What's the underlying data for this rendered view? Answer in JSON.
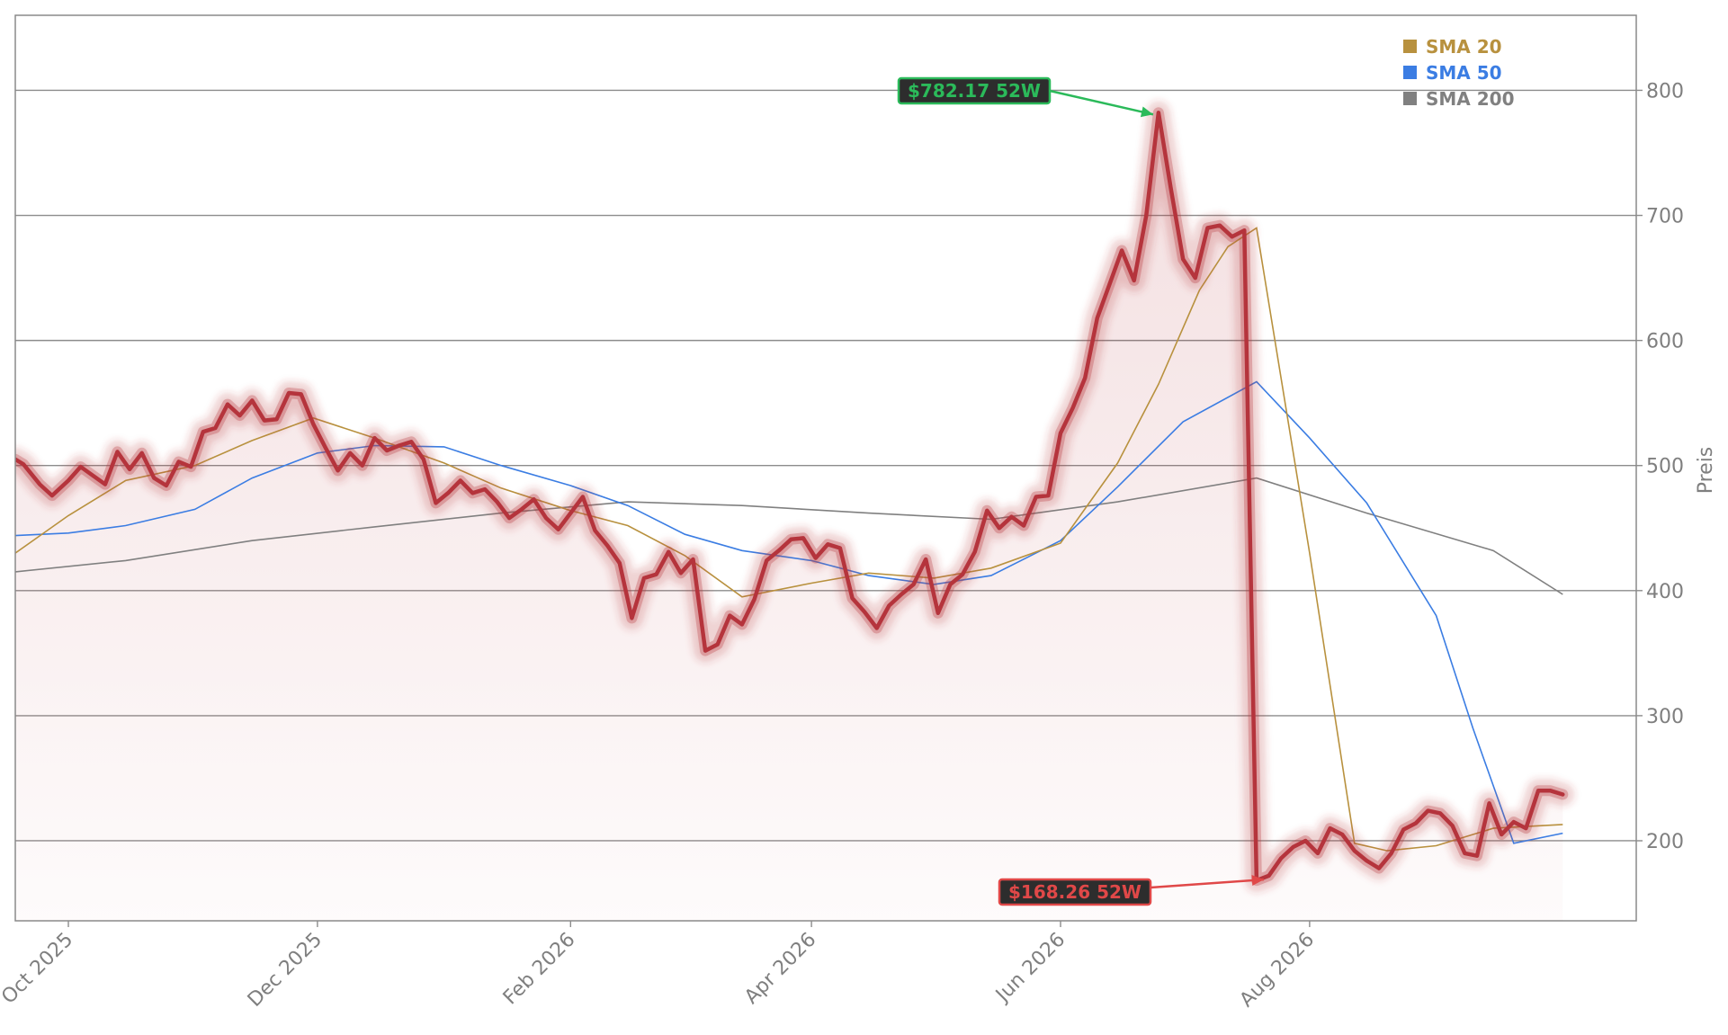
{
  "chart_data": {
    "type": "line",
    "title": "",
    "xlabel": "",
    "ylabel": "Preis",
    "ylim": [
      136,
      860
    ],
    "y_ticks": [
      200,
      300,
      400,
      500,
      600,
      700,
      800
    ],
    "x_range": [
      "2025-09-18",
      "2026-10-20"
    ],
    "x_ticks": [
      {
        "date": "2025-10-01",
        "label": "Oct 2025"
      },
      {
        "date": "2025-12-01",
        "label": "Dec 2025"
      },
      {
        "date": "2026-02-01",
        "label": "Feb 2026"
      },
      {
        "date": "2026-04-01",
        "label": "Apr 2026"
      },
      {
        "date": "2026-06-01",
        "label": "Jun 2026"
      },
      {
        "date": "2026-08-01",
        "label": "Aug 2026"
      }
    ],
    "grid": "horizontal",
    "legend_position": "top-right",
    "colors": {
      "price": "#b5343c",
      "sma20": "#b8913e",
      "sma50": "#3b7de3",
      "sma200": "#808080",
      "high_badge": "#2bba5a",
      "low_badge": "#e04848"
    },
    "series": [
      {
        "key": "price",
        "points": [
          [
            "2025-09-18",
            505
          ],
          [
            "2025-09-20",
            501
          ],
          [
            "2025-09-24",
            485
          ],
          [
            "2025-09-27",
            476
          ],
          [
            "2025-10-01",
            488
          ],
          [
            "2025-10-04",
            499
          ],
          [
            "2025-10-07",
            492
          ],
          [
            "2025-10-10",
            485
          ],
          [
            "2025-10-13",
            511
          ],
          [
            "2025-10-16",
            497
          ],
          [
            "2025-10-19",
            510
          ],
          [
            "2025-10-22",
            490
          ],
          [
            "2025-10-25",
            484
          ],
          [
            "2025-10-28",
            503
          ],
          [
            "2025-10-31",
            499
          ],
          [
            "2025-11-03",
            527
          ],
          [
            "2025-11-06",
            530
          ],
          [
            "2025-11-09",
            549
          ],
          [
            "2025-11-12",
            540
          ],
          [
            "2025-11-15",
            552
          ],
          [
            "2025-11-18",
            536
          ],
          [
            "2025-11-21",
            537
          ],
          [
            "2025-11-24",
            558
          ],
          [
            "2025-11-27",
            557
          ],
          [
            "2025-11-30",
            533
          ],
          [
            "2025-12-03",
            514
          ],
          [
            "2025-12-06",
            496
          ],
          [
            "2025-12-09",
            510
          ],
          [
            "2025-12-12",
            500
          ],
          [
            "2025-12-15",
            522
          ],
          [
            "2025-12-18",
            512
          ],
          [
            "2025-12-21",
            516
          ],
          [
            "2025-12-24",
            519
          ],
          [
            "2025-12-27",
            505
          ],
          [
            "2025-12-30",
            470
          ],
          [
            "2026-01-02",
            478
          ],
          [
            "2026-01-05",
            488
          ],
          [
            "2026-01-08",
            478
          ],
          [
            "2026-01-11",
            481
          ],
          [
            "2026-01-14",
            471
          ],
          [
            "2026-01-17",
            458
          ],
          [
            "2026-01-20",
            465
          ],
          [
            "2026-01-23",
            473
          ],
          [
            "2026-01-26",
            458
          ],
          [
            "2026-01-29",
            449
          ],
          [
            "2026-02-01",
            462
          ],
          [
            "2026-02-04",
            475
          ],
          [
            "2026-02-07",
            448
          ],
          [
            "2026-02-10",
            436
          ],
          [
            "2026-02-13",
            422
          ],
          [
            "2026-02-16",
            378
          ],
          [
            "2026-02-19",
            410
          ],
          [
            "2026-02-22",
            413
          ],
          [
            "2026-02-25",
            431
          ],
          [
            "2026-02-28",
            414
          ],
          [
            "2026-03-03",
            425
          ],
          [
            "2026-03-06",
            352
          ],
          [
            "2026-03-09",
            357
          ],
          [
            "2026-03-12",
            380
          ],
          [
            "2026-03-15",
            373
          ],
          [
            "2026-03-18",
            393
          ],
          [
            "2026-03-21",
            424
          ],
          [
            "2026-03-24",
            432
          ],
          [
            "2026-03-27",
            441
          ],
          [
            "2026-03-30",
            442
          ],
          [
            "2026-04-02",
            426
          ],
          [
            "2026-04-05",
            437
          ],
          [
            "2026-04-08",
            434
          ],
          [
            "2026-04-11",
            394
          ],
          [
            "2026-04-14",
            383
          ],
          [
            "2026-04-17",
            370
          ],
          [
            "2026-04-20",
            388
          ],
          [
            "2026-04-23",
            397
          ],
          [
            "2026-04-26",
            405
          ],
          [
            "2026-04-29",
            425
          ],
          [
            "2026-05-02",
            382
          ],
          [
            "2026-05-05",
            405
          ],
          [
            "2026-05-08",
            413
          ],
          [
            "2026-05-11",
            431
          ],
          [
            "2026-05-14",
            464
          ],
          [
            "2026-05-17",
            450
          ],
          [
            "2026-05-20",
            459
          ],
          [
            "2026-05-23",
            452
          ],
          [
            "2026-05-26",
            475
          ],
          [
            "2026-05-29",
            476
          ],
          [
            "2026-06-01",
            526
          ],
          [
            "2026-06-04",
            546
          ],
          [
            "2026-06-07",
            570
          ],
          [
            "2026-06-10",
            618
          ],
          [
            "2026-06-13",
            645
          ],
          [
            "2026-06-16",
            672
          ],
          [
            "2026-06-19",
            648
          ],
          [
            "2026-06-22",
            700
          ],
          [
            "2026-06-25",
            782.17
          ],
          [
            "2026-06-28",
            722
          ],
          [
            "2026-07-01",
            665
          ],
          [
            "2026-07-04",
            650
          ],
          [
            "2026-07-07",
            690
          ],
          [
            "2026-07-10",
            692
          ],
          [
            "2026-07-13",
            683
          ],
          [
            "2026-07-16",
            688
          ],
          [
            "2026-07-19",
            168.26
          ],
          [
            "2026-07-22",
            172
          ],
          [
            "2026-07-25",
            186
          ],
          [
            "2026-07-28",
            195
          ],
          [
            "2026-07-31",
            200
          ],
          [
            "2026-08-03",
            190
          ],
          [
            "2026-08-06",
            210
          ],
          [
            "2026-08-09",
            205
          ],
          [
            "2026-08-12",
            192
          ],
          [
            "2026-08-15",
            184
          ],
          [
            "2026-08-18",
            178
          ],
          [
            "2026-08-21",
            190
          ],
          [
            "2026-08-24",
            209
          ],
          [
            "2026-08-27",
            214
          ],
          [
            "2026-08-30",
            224
          ],
          [
            "2026-09-02",
            222
          ],
          [
            "2026-09-05",
            212
          ],
          [
            "2026-09-08",
            190
          ],
          [
            "2026-09-11",
            188
          ],
          [
            "2026-09-14",
            230
          ],
          [
            "2026-09-17",
            205
          ],
          [
            "2026-09-20",
            215
          ],
          [
            "2026-09-23",
            210
          ],
          [
            "2026-09-26",
            240
          ],
          [
            "2026-09-29",
            240
          ],
          [
            "2026-10-02",
            237
          ]
        ]
      },
      {
        "key": "sma20",
        "points": [
          [
            "2025-09-18",
            430
          ],
          [
            "2025-10-01",
            460
          ],
          [
            "2025-10-15",
            488
          ],
          [
            "2025-11-01",
            500
          ],
          [
            "2025-11-15",
            520
          ],
          [
            "2025-11-30",
            538
          ],
          [
            "2025-12-15",
            522
          ],
          [
            "2026-01-01",
            502
          ],
          [
            "2026-01-15",
            482
          ],
          [
            "2026-02-01",
            464
          ],
          [
            "2026-02-15",
            452
          ],
          [
            "2026-03-01",
            428
          ],
          [
            "2026-03-15",
            395
          ],
          [
            "2026-04-01",
            406
          ],
          [
            "2026-04-15",
            414
          ],
          [
            "2026-05-01",
            410
          ],
          [
            "2026-05-15",
            418
          ],
          [
            "2026-06-01",
            438
          ],
          [
            "2026-06-15",
            502
          ],
          [
            "2026-06-25",
            565
          ],
          [
            "2026-07-05",
            640
          ],
          [
            "2026-07-12",
            675
          ],
          [
            "2026-07-19",
            690
          ],
          [
            "2026-08-01",
            430
          ],
          [
            "2026-08-12",
            198
          ],
          [
            "2026-08-20",
            192
          ],
          [
            "2026-09-01",
            196
          ],
          [
            "2026-09-15",
            210
          ],
          [
            "2026-10-02",
            213
          ]
        ]
      },
      {
        "key": "sma50",
        "points": [
          [
            "2025-09-18",
            444
          ],
          [
            "2025-10-01",
            446
          ],
          [
            "2025-10-15",
            452
          ],
          [
            "2025-11-01",
            465
          ],
          [
            "2025-11-15",
            490
          ],
          [
            "2025-12-01",
            510
          ],
          [
            "2025-12-15",
            516
          ],
          [
            "2026-01-01",
            515
          ],
          [
            "2026-01-15",
            500
          ],
          [
            "2026-02-01",
            484
          ],
          [
            "2026-02-15",
            468
          ],
          [
            "2026-03-01",
            445
          ],
          [
            "2026-03-15",
            432
          ],
          [
            "2026-04-01",
            424
          ],
          [
            "2026-04-15",
            412
          ],
          [
            "2026-05-01",
            405
          ],
          [
            "2026-05-15",
            412
          ],
          [
            "2026-06-01",
            440
          ],
          [
            "2026-06-15",
            483
          ],
          [
            "2026-07-01",
            535
          ],
          [
            "2026-07-19",
            567
          ],
          [
            "2026-08-01",
            522
          ],
          [
            "2026-08-15",
            470
          ],
          [
            "2026-09-01",
            380
          ],
          [
            "2026-09-10",
            290
          ],
          [
            "2026-09-20",
            198
          ],
          [
            "2026-10-02",
            206
          ]
        ]
      },
      {
        "key": "sma200",
        "points": [
          [
            "2025-09-18",
            415
          ],
          [
            "2025-10-15",
            424
          ],
          [
            "2025-11-15",
            440
          ],
          [
            "2025-12-15",
            451
          ],
          [
            "2026-01-15",
            462
          ],
          [
            "2026-02-15",
            471
          ],
          [
            "2026-03-15",
            468
          ],
          [
            "2026-04-15",
            462
          ],
          [
            "2026-05-15",
            457
          ],
          [
            "2026-06-15",
            471
          ],
          [
            "2026-07-19",
            490
          ],
          [
            "2026-08-15",
            462
          ],
          [
            "2026-09-15",
            432
          ],
          [
            "2026-10-02",
            397
          ]
        ]
      }
    ],
    "legend": [
      {
        "label": "SMA 20",
        "color": "#b8913e"
      },
      {
        "label": "SMA 50",
        "color": "#3b7de3"
      },
      {
        "label": "SMA 200",
        "color": "#808080"
      }
    ],
    "annotations": [
      {
        "text": "$782.17 52W",
        "date": "2026-06-25",
        "value": 782.17,
        "color": "#2bba5a"
      },
      {
        "text": "$168.26 52W",
        "date": "2026-07-19",
        "value": 168.26,
        "color": "#e04848"
      }
    ]
  }
}
